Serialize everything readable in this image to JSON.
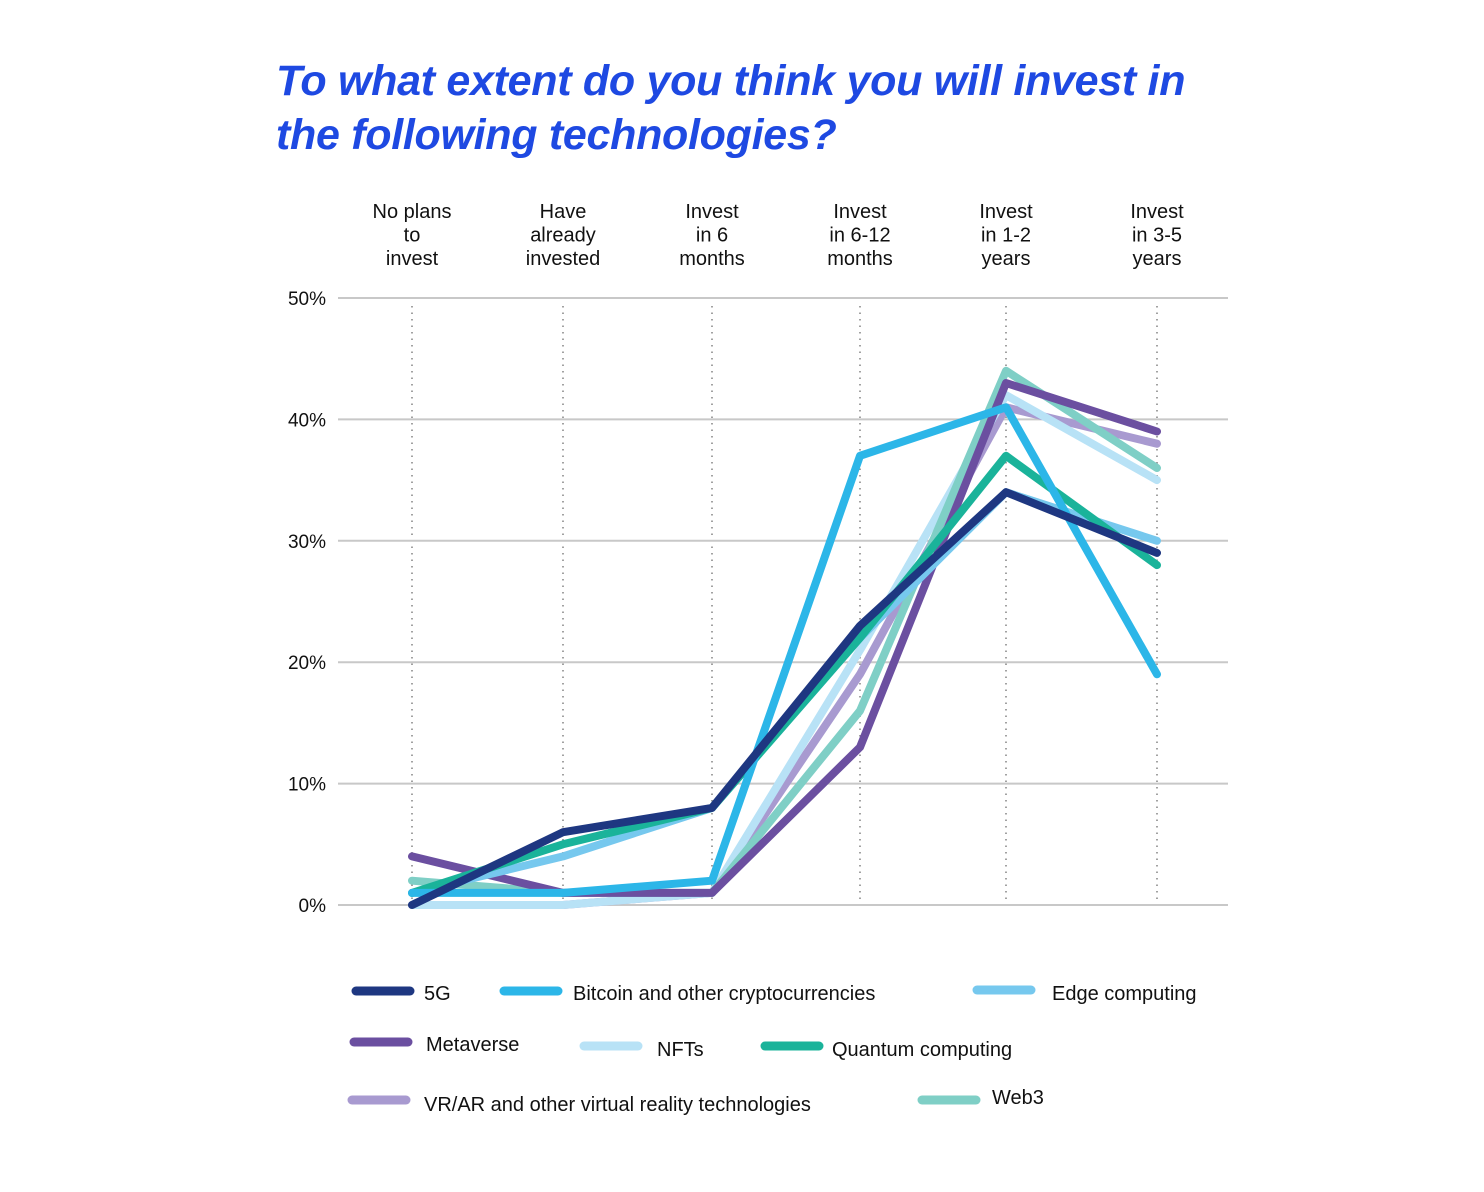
{
  "chart_data": {
    "type": "line",
    "title": "To what extent do you think you will invest in the following technologies?",
    "categories": [
      [
        "No plans",
        "to",
        "invest"
      ],
      [
        "Have",
        "already",
        "invested"
      ],
      [
        "Invest",
        "in 6",
        "months"
      ],
      [
        "Invest",
        "in 6-12",
        "months"
      ],
      [
        "Invest",
        "in 1-2",
        "years"
      ],
      [
        "Invest",
        "in 3-5",
        "years"
      ]
    ],
    "ylim": [
      0,
      50
    ],
    "yticks": [
      0,
      10,
      20,
      30,
      40,
      50
    ],
    "ytick_labels": [
      "0%",
      "10%",
      "20%",
      "30%",
      "40%",
      "50%"
    ],
    "grid": true,
    "legend_position": "bottom",
    "series": [
      {
        "name": "VR/AR and other virtual reality technologies",
        "color": "#a89ad0",
        "values": [
          0,
          0,
          1,
          19,
          41,
          38
        ]
      },
      {
        "name": "NFTs",
        "color": "#b8e2f6",
        "values": [
          0,
          0,
          1,
          21,
          42,
          35
        ]
      },
      {
        "name": "Web3",
        "color": "#7fcfc6",
        "values": [
          2,
          1,
          1,
          16,
          44,
          36
        ]
      },
      {
        "name": "Metaverse",
        "color": "#6b4fa0",
        "values": [
          4,
          1,
          1,
          13,
          43,
          39
        ]
      },
      {
        "name": "Edge computing",
        "color": "#76c8ee",
        "values": [
          1,
          4,
          8,
          22,
          34,
          30
        ]
      },
      {
        "name": "Quantum computing",
        "color": "#1ab39a",
        "values": [
          1,
          5,
          8,
          22,
          37,
          28
        ]
      },
      {
        "name": "Bitcoin and other cryptocurrencies",
        "color": "#2cb6e8",
        "values": [
          1,
          1,
          2,
          37,
          41,
          19
        ]
      },
      {
        "name": "5G",
        "color": "#1e3781",
        "values": [
          0,
          6,
          8,
          23,
          34,
          29
        ]
      }
    ],
    "legend_order": [
      "5G",
      "Bitcoin and other cryptocurrencies",
      "Edge computing",
      "Metaverse",
      "NFTs",
      "Quantum computing",
      "VR/AR and other virtual reality technologies",
      "Web3"
    ]
  }
}
